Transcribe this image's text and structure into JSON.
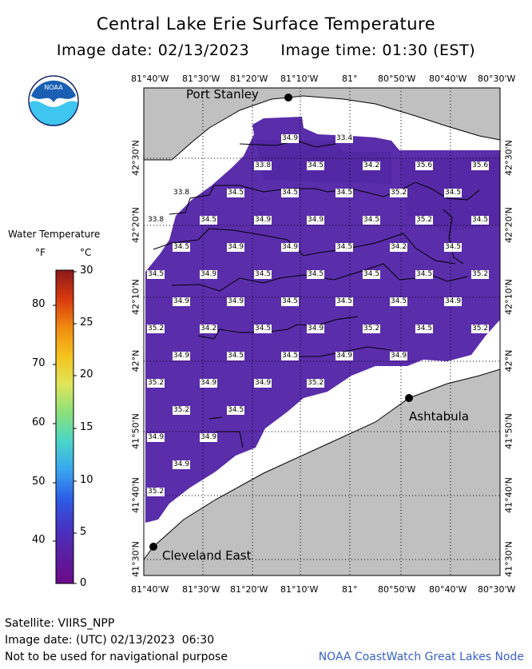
{
  "header": {
    "title": "Central Lake Erie Surface Temperature",
    "subtitle": "Image date: 02/13/2023      Image time: 01:30 (EST)"
  },
  "logo": {
    "text": "NOAA",
    "icon": "noaa-logo-icon",
    "colors": {
      "blue": "#1a5fb4",
      "sky": "#3ec6f0",
      "navy": "#1d2a6b"
    }
  },
  "axes": {
    "longitudes": [
      "81°40'W",
      "81°30'W",
      "81°20'W",
      "81°10'W",
      "81°",
      "80°50'W",
      "80°40'W",
      "80°30'W"
    ],
    "latitudes": [
      "42°30'N",
      "42°20'N",
      "42°10'N",
      "42°N",
      "41°50'N",
      "41°40'N",
      "41°30'N"
    ]
  },
  "cities": {
    "port_stanley": "Port Stanley",
    "ashtabula": "Ashtabula",
    "cleveland_east": "Cleveland East"
  },
  "temperatures": [
    "34.9",
    "33.4",
    "33.8",
    "34.5",
    "34.2",
    "35.6",
    "35.6",
    "33.8",
    "34.5",
    "34.5",
    "34.5",
    "35.2",
    "34.5",
    "33.8",
    "34.5",
    "34.9",
    "34.9",
    "34.5",
    "35.2",
    "34.5",
    "34.5",
    "34.9",
    "34.9",
    "34.5",
    "34.2",
    "34.5",
    "34.5",
    "34.9",
    "34.5",
    "34.5",
    "34.5",
    "34.5",
    "35.2",
    "34.9",
    "34.9",
    "34.5",
    "34.5",
    "34.5",
    "34.9",
    "35.2",
    "34.2",
    "34.5",
    "34.9",
    "35.2",
    "34.5",
    "35.2",
    "34.9",
    "34.5",
    "34.5",
    "34.9",
    "34.9",
    "35.2",
    "34.9",
    "34.9",
    "35.2",
    "35.2",
    "34.5",
    "34.9",
    "34.9",
    "34.9",
    "35.2"
  ],
  "legend": {
    "title": "Water Temperature",
    "unit_f": "°F",
    "unit_c": "°C",
    "fahrenheit_ticks": [
      "80",
      "70",
      "60",
      "50",
      "40"
    ],
    "celsius_ticks": [
      "30",
      "25",
      "20",
      "15",
      "10",
      "5",
      "0"
    ],
    "gradient": [
      "#8b1a1a",
      "#d8380e",
      "#f08a10",
      "#f5c21c",
      "#e0e65a",
      "#8ce07a",
      "#4ad6c8",
      "#3aa6f0",
      "#2c5fe6",
      "#4534c4",
      "#5a1ea0",
      "#6a0a8a"
    ]
  },
  "colors": {
    "water": "#5a2dab",
    "land": "#c0c0c0",
    "ice": "#ffffff"
  },
  "footer": {
    "satellite": "Satellite: VIIRS_NPP",
    "utc_date": "Image date: (UTC) 02/13/2023  06:30",
    "disclaimer": "Not to be used for navigational purpose",
    "credit": "NOAA CoastWatch Great Lakes Node"
  }
}
